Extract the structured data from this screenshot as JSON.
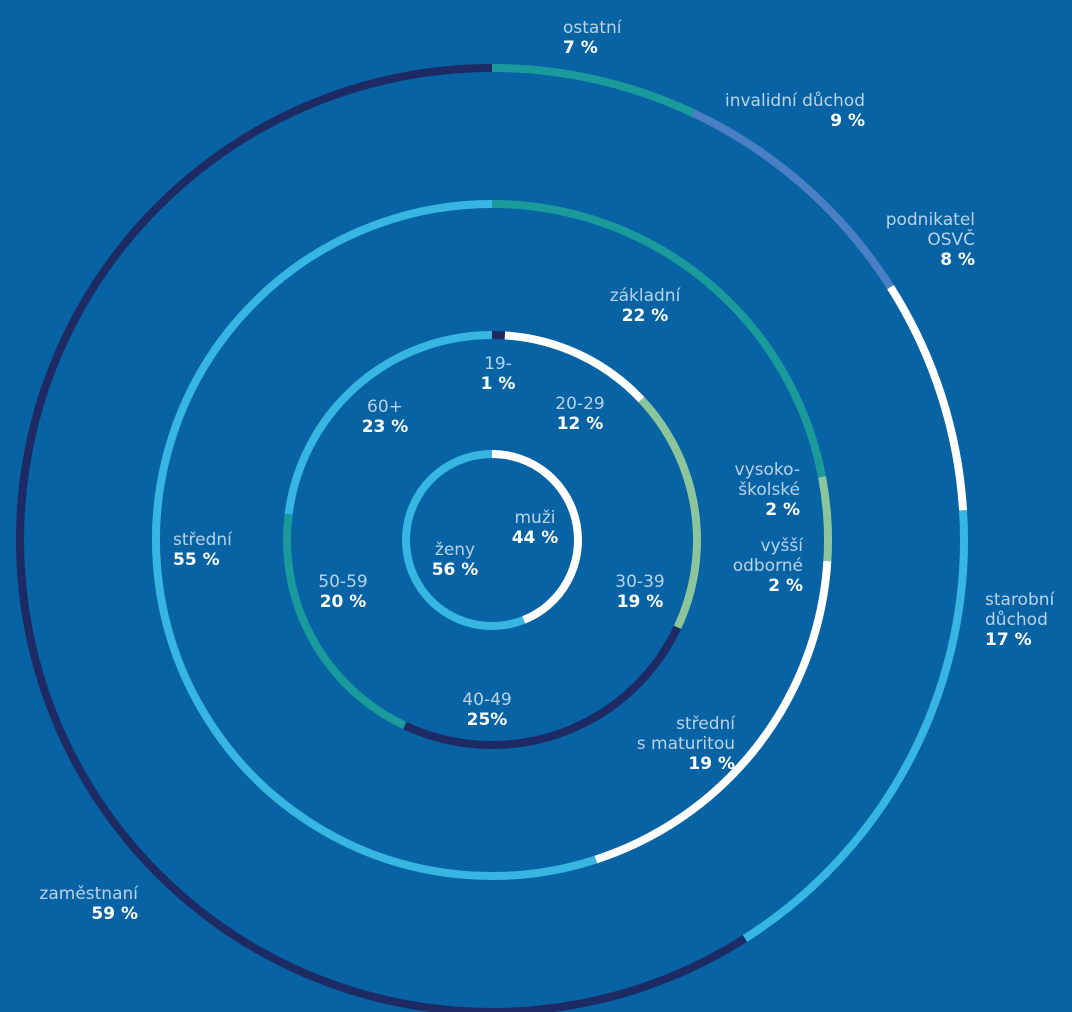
{
  "chart_data": {
    "type": "donut",
    "rings": [
      {
        "name": "",
        "segments": [
          {
            "label": "muži",
            "value": 44,
            "value_label": "44 %",
            "color": "#ffffff"
          },
          {
            "label": "ženy",
            "value": 56,
            "value_label": "56 %",
            "color": "#37b6e4"
          }
        ]
      },
      {
        "name": "",
        "segments": [
          {
            "label": "19-",
            "value": 1,
            "value_label": "1 %",
            "color": "#1e2a63"
          },
          {
            "label": "20-29",
            "value": 12,
            "value_label": "12 %",
            "color": "#ffffff"
          },
          {
            "label": "30-39",
            "value": 19,
            "value_label": "19 %",
            "color": "#8cc49c"
          },
          {
            "label": "40-49",
            "value": 25,
            "value_label": "25%",
            "color": "#1e2a63"
          },
          {
            "label": "50-59",
            "value": 20,
            "value_label": "20 %",
            "color": "#1a9a9a"
          },
          {
            "label": "60+",
            "value": 23,
            "value_label": "23 %",
            "color": "#37b6e4"
          }
        ]
      },
      {
        "name": "",
        "segments": [
          {
            "label": "základní",
            "value": 22,
            "value_label": "22 %",
            "color": "#1a9a9a"
          },
          {
            "label": "vysoko-školské",
            "value": 2,
            "value_label": "2 %",
            "color": "#8cc49c"
          },
          {
            "label": "vyšší odborné",
            "value": 2,
            "value_label": "2 %",
            "color": "#8cc49c"
          },
          {
            "label": "střední s maturitou",
            "value": 19,
            "value_label": "19 %",
            "color": "#ffffff"
          },
          {
            "label": "střední",
            "value": 55,
            "value_label": "55 %",
            "color": "#37b6e4"
          }
        ]
      },
      {
        "name": "",
        "segments": [
          {
            "label": "ostatní",
            "value": 7,
            "value_label": "7 %",
            "color": "#1a9a9a"
          },
          {
            "label": "invalidní důchod",
            "value": 9,
            "value_label": "9 %",
            "color": "#4a7fc3"
          },
          {
            "label": "podnikatel OSVČ",
            "value": 8,
            "value_label": "8 %",
            "color": "#ffffff"
          },
          {
            "label": "starobní důchod",
            "value": 17,
            "value_label": "17 %",
            "color": "#37b6e4"
          },
          {
            "label": "zaměstnaní",
            "value": 59,
            "value_label": "59 %",
            "color": "#1e2a63"
          }
        ]
      }
    ]
  },
  "labels": {
    "muzi": {
      "name": "muži",
      "value": "44 %"
    },
    "zeny": {
      "name": "ženy",
      "value": "56 %"
    },
    "age19": {
      "name": "19-",
      "value": "1 %"
    },
    "age20": {
      "name": "20-29",
      "value": "12 %"
    },
    "age30": {
      "name": "30-39",
      "value": "19 %"
    },
    "age40": {
      "name": "40-49",
      "value": "25%"
    },
    "age50": {
      "name": "50-59",
      "value": "20 %"
    },
    "age60": {
      "name": "60+",
      "value": "23 %"
    },
    "zakladni": {
      "name": "základní",
      "value": "22 %"
    },
    "vysoko": {
      "name1": "vysoko-",
      "name2": "školské",
      "value": "2 %"
    },
    "vyssi": {
      "name1": "vyšší",
      "name2": "odborné",
      "value": "2 %"
    },
    "stredni_mat": {
      "name1": "střední",
      "name2": "s maturitou",
      "value": "19 %"
    },
    "stredni": {
      "name": "střední",
      "value": "55 %"
    },
    "ostatni": {
      "name": "ostatní",
      "value": "7 %"
    },
    "invalidni": {
      "name": "invalidní důchod",
      "value": "9 %"
    },
    "podnikatel": {
      "name1": "podnikatel",
      "name2": "OSVČ",
      "value": "8 %"
    },
    "starobni": {
      "name1": "starobní",
      "name2": "důchod",
      "value": "17 %"
    },
    "zamestnani": {
      "name": "zaměstnaní",
      "value": "59 %"
    }
  }
}
